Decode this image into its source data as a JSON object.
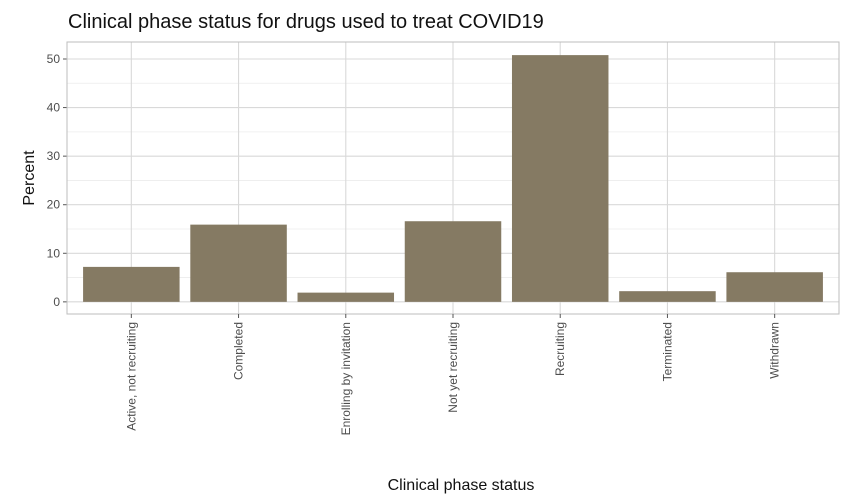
{
  "chart_data": {
    "type": "bar",
    "title": "Clinical phase status for drugs used to treat COVID19",
    "xlabel": "Clinical phase status",
    "ylabel": "Percent",
    "categories": [
      "Active, not recruiting",
      "Completed",
      "Enrolling by invitation",
      "Not yet recruiting",
      "Recruiting",
      "Terminated",
      "Withdrawn"
    ],
    "values": [
      7.2,
      15.9,
      1.9,
      16.6,
      50.8,
      2.2,
      6.1
    ],
    "yticks": [
      0,
      10,
      20,
      30,
      40,
      50
    ],
    "ylim": [
      -2.5,
      53.5
    ],
    "grid": true,
    "legend": "none",
    "bar_color": "#857a63"
  }
}
